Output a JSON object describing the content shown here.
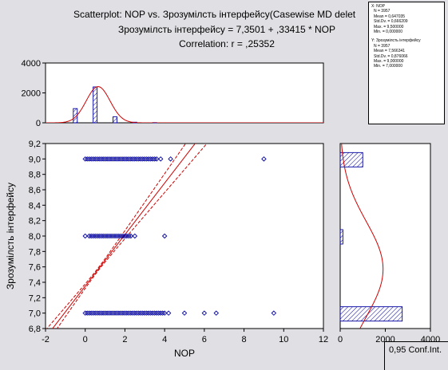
{
  "chart_data": {
    "type": "scatter",
    "title_lines": [
      "Scatterplot: NOP      vs.  Зрозумілсть інтерфейсу(Casewise MD delet",
      "Зрозумілсть інтерфейсу = 7,3501 + ,33415 * NOP",
      "Correlation: r = ,25352"
    ],
    "xlabel": "NOP",
    "ylabel": "Зрозумілсть інтерфейсу",
    "xlim": [
      -2,
      12
    ],
    "ylim": [
      6.8,
      9.2
    ],
    "xticks": [
      "-2",
      "0",
      "2",
      "4",
      "6",
      "8",
      "10",
      "12"
    ],
    "yticks": [
      "6,8",
      "7,0",
      "7,2",
      "7,4",
      "7,6",
      "7,8",
      "8,0",
      "8,2",
      "8,4",
      "8,6",
      "8,8",
      "9,0",
      "9,2"
    ],
    "regression": {
      "intercept": 7.3501,
      "slope": 0.33415,
      "r": 0.25352
    },
    "points_y9": [
      0,
      0.1,
      0.2,
      0.3,
      0.4,
      0.5,
      0.6,
      0.7,
      0.8,
      0.9,
      1.0,
      1.1,
      1.2,
      1.3,
      1.4,
      1.5,
      1.6,
      1.7,
      1.8,
      1.9,
      2.0,
      2.1,
      2.2,
      2.3,
      2.4,
      2.5,
      2.6,
      2.7,
      2.8,
      2.9,
      3.0,
      3.1,
      3.2,
      3.3,
      3.4,
      3.5,
      3.6,
      3.8,
      4.3,
      9.0
    ],
    "points_y8": [
      0,
      0.2,
      0.3,
      0.4,
      0.5,
      0.6,
      0.7,
      0.8,
      0.9,
      1.0,
      1.1,
      1.2,
      1.3,
      1.4,
      1.5,
      1.6,
      1.7,
      1.8,
      1.9,
      2.0,
      2.1,
      2.2,
      2.3,
      2.5,
      4.0
    ],
    "points_y7": [
      0,
      0.1,
      0.2,
      0.3,
      0.4,
      0.5,
      0.6,
      0.7,
      0.8,
      0.9,
      1.0,
      1.1,
      1.2,
      1.3,
      1.4,
      1.5,
      1.6,
      1.7,
      1.8,
      1.9,
      2.0,
      2.1,
      2.2,
      2.3,
      2.4,
      2.5,
      2.6,
      2.7,
      2.8,
      2.9,
      3.0,
      3.1,
      3.2,
      3.3,
      3.4,
      3.5,
      3.6,
      3.7,
      3.8,
      3.9,
      4.0,
      4.2,
      5.0,
      6.0,
      6.6,
      9.5
    ],
    "top_hist": {
      "ylim": [
        0,
        4000
      ],
      "yticks": [
        "0",
        "2000",
        "4000"
      ],
      "bins": [
        {
          "x": -0.5,
          "count": 950
        },
        {
          "x": 0.5,
          "count": 2400
        },
        {
          "x": 1.5,
          "count": 400
        },
        {
          "x": 2.5,
          "count": 40
        },
        {
          "x": 3.5,
          "count": 15
        }
      ]
    },
    "right_hist": {
      "xlim": [
        0,
        4000
      ],
      "xticks": [
        "0",
        "2000",
        "4000"
      ],
      "bins": [
        {
          "y": 9.0,
          "count": 1000
        },
        {
          "y": 8.0,
          "count": 120
        },
        {
          "y": 7.0,
          "count": 2750
        }
      ]
    }
  },
  "legend": {
    "x_block": [
      "X:  NOP",
      "N = 3957",
      "Mean = 0,647035",
      "Std.Dv. = 0,666209",
      "Max. = 9,500000",
      "Min. = 0,000000"
    ],
    "y_block": [
      "Y:  Зрозумілсть інтерфейсу",
      "N = 3957",
      "Mean = 7,566341",
      "Std.Dv. = 0,876066",
      "Max. = 9,000000",
      "Min. = 7,000000"
    ]
  },
  "conf_label": "0,95 Conf.Int.",
  "colors": {
    "points": "#0000a0",
    "fit": "#d00000",
    "hatch": "#0000a0",
    "plot_bg": "#ffffff",
    "frame_bg": "#e0dfe3"
  }
}
